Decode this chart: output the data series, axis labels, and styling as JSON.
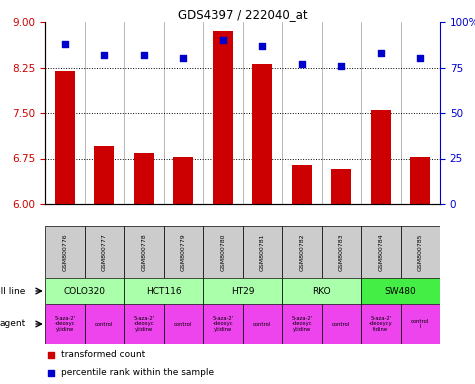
{
  "title": "GDS4397 / 222040_at",
  "samples": [
    "GSM800776",
    "GSM800777",
    "GSM800778",
    "GSM800779",
    "GSM800780",
    "GSM800781",
    "GSM800782",
    "GSM800783",
    "GSM800784",
    "GSM800785"
  ],
  "bar_values": [
    8.2,
    6.95,
    6.84,
    6.77,
    8.85,
    8.3,
    6.65,
    6.58,
    7.55,
    6.77
  ],
  "scatter_values": [
    88,
    82,
    82,
    80,
    90,
    87,
    77,
    76,
    83,
    80
  ],
  "bar_color": "#cc0000",
  "scatter_color": "#0000cc",
  "ylim_left": [
    6,
    9
  ],
  "ylim_right": [
    0,
    100
  ],
  "yticks_left": [
    6,
    6.75,
    7.5,
    8.25,
    9
  ],
  "yticks_right": [
    0,
    25,
    50,
    75,
    100
  ],
  "ytick_labels_right": [
    "0",
    "25",
    "50",
    "75",
    "100%"
  ],
  "hlines": [
    6.75,
    7.5,
    8.25
  ],
  "cell_lines": [
    {
      "label": "COLO320",
      "span": [
        0,
        2
      ],
      "color": "#aaffaa"
    },
    {
      "label": "HCT116",
      "span": [
        2,
        4
      ],
      "color": "#aaffaa"
    },
    {
      "label": "HT29",
      "span": [
        4,
        6
      ],
      "color": "#aaffaa"
    },
    {
      "label": "RKO",
      "span": [
        6,
        8
      ],
      "color": "#aaffaa"
    },
    {
      "label": "SW480",
      "span": [
        8,
        10
      ],
      "color": "#44ee44"
    }
  ],
  "agents": [
    {
      "label": "5-aza-2'\n-deoxyc\nytidine",
      "span": [
        0,
        1
      ],
      "color": "#ee44ee"
    },
    {
      "label": "control",
      "span": [
        1,
        2
      ],
      "color": "#ee44ee"
    },
    {
      "label": "5-aza-2'\n-deoxyc\nytidine",
      "span": [
        2,
        3
      ],
      "color": "#ee44ee"
    },
    {
      "label": "control",
      "span": [
        3,
        4
      ],
      "color": "#ee44ee"
    },
    {
      "label": "5-aza-2'\n-deoxyc\nytidine",
      "span": [
        4,
        5
      ],
      "color": "#ee44ee"
    },
    {
      "label": "control",
      "span": [
        5,
        6
      ],
      "color": "#ee44ee"
    },
    {
      "label": "5-aza-2'\n-deoxyc\nytidine",
      "span": [
        6,
        7
      ],
      "color": "#ee44ee"
    },
    {
      "label": "control",
      "span": [
        7,
        8
      ],
      "color": "#ee44ee"
    },
    {
      "label": "5-aza-2'\n-deoxycy\ntidine",
      "span": [
        8,
        9
      ],
      "color": "#ee44ee"
    },
    {
      "label": "control\nl",
      "span": [
        9,
        10
      ],
      "color": "#ee44ee"
    }
  ],
  "legend_bar_label": "transformed count",
  "legend_scatter_label": "percentile rank within the sample",
  "cell_line_label": "cell line",
  "agent_label": "agent",
  "left_tick_color": "#cc0000",
  "right_tick_color": "#0000cc",
  "sample_bg_color": "#cccccc",
  "chart_bg_color": "#ffffff"
}
